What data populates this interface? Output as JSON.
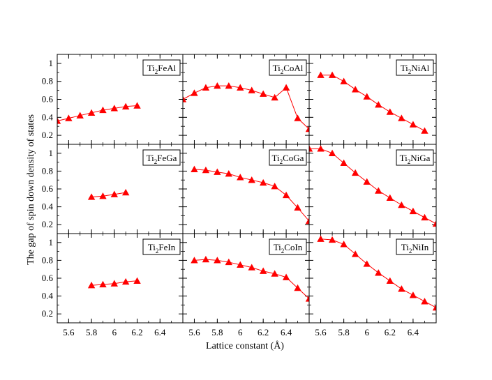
{
  "figure": {
    "xlabel": "Lattice constant (Å)",
    "ylabel": "The gap of spin down density of states"
  },
  "colors": {
    "series": "#ff0000",
    "frame": "#000000",
    "background": "#ffffff"
  },
  "chart_data": {
    "type": "line",
    "layout": "3x3 grid of panels sharing axes",
    "xlim": [
      5.5,
      6.6
    ],
    "ylim": [
      0.1,
      1.1
    ],
    "xticks": [
      5.6,
      5.8,
      6,
      6.2,
      6.4
    ],
    "yticks": [
      0.2,
      0.4,
      0.6,
      0.8,
      1
    ],
    "xticklabels": [
      "5.6",
      "5.8",
      "6",
      "6.2",
      "6.4"
    ],
    "yticklabels": [
      "0.2",
      "0.4",
      "0.6",
      "0.8",
      "1"
    ],
    "marker": "triangle",
    "panels": [
      {
        "label": {
          "pre": "Ti",
          "sub": "2",
          "post": "FeAl"
        },
        "row": 0,
        "col": 0,
        "x": [
          5.5,
          5.6,
          5.7,
          5.8,
          5.9,
          6.0,
          6.1,
          6.2
        ],
        "y": [
          0.36,
          0.39,
          0.42,
          0.45,
          0.48,
          0.5,
          0.52,
          0.53
        ]
      },
      {
        "label": {
          "pre": "Ti",
          "sub": "2",
          "post": "CoAl"
        },
        "row": 0,
        "col": 1,
        "x": [
          5.5,
          5.6,
          5.7,
          5.8,
          5.9,
          6.0,
          6.1,
          6.2,
          6.3,
          6.4,
          6.5,
          6.6
        ],
        "y": [
          0.6,
          0.67,
          0.73,
          0.75,
          0.75,
          0.73,
          0.7,
          0.66,
          0.62,
          0.73,
          0.39,
          0.27
        ]
      },
      {
        "label": {
          "pre": "Ti",
          "sub": "2",
          "post": "NiAl"
        },
        "row": 0,
        "col": 2,
        "x": [
          5.6,
          5.7,
          5.8,
          5.9,
          6.0,
          6.1,
          6.2,
          6.3,
          6.4,
          6.5
        ],
        "y": [
          0.87,
          0.87,
          0.8,
          0.71,
          0.63,
          0.54,
          0.46,
          0.39,
          0.32,
          0.25
        ]
      },
      {
        "label": {
          "pre": "Ti",
          "sub": "2",
          "post": "FeGa"
        },
        "row": 1,
        "col": 0,
        "x": [
          5.8,
          5.9,
          6.0,
          6.1
        ],
        "y": [
          0.51,
          0.52,
          0.54,
          0.56
        ]
      },
      {
        "label": {
          "pre": "Ti",
          "sub": "2",
          "post": "CoGa"
        },
        "row": 1,
        "col": 1,
        "x": [
          5.6,
          5.7,
          5.8,
          5.9,
          6.0,
          6.1,
          6.2,
          6.3,
          6.4,
          6.5,
          6.6
        ],
        "y": [
          0.82,
          0.81,
          0.79,
          0.77,
          0.73,
          0.7,
          0.67,
          0.63,
          0.53,
          0.39,
          0.24
        ]
      },
      {
        "label": {
          "pre": "Ti",
          "sub": "2",
          "post": "NiGa"
        },
        "row": 1,
        "col": 2,
        "x": [
          5.5,
          5.6,
          5.7,
          5.8,
          5.9,
          6.0,
          6.1,
          6.2,
          6.3,
          6.4,
          6.5,
          6.6
        ],
        "y": [
          1.05,
          1.05,
          1.0,
          0.89,
          0.78,
          0.68,
          0.58,
          0.5,
          0.42,
          0.35,
          0.28,
          0.21
        ]
      },
      {
        "label": {
          "pre": "Ti",
          "sub": "2",
          "post": "FeIn"
        },
        "row": 2,
        "col": 0,
        "x": [
          5.8,
          5.9,
          6.0,
          6.1,
          6.2
        ],
        "y": [
          0.52,
          0.53,
          0.54,
          0.56,
          0.57
        ]
      },
      {
        "label": {
          "pre": "Ti",
          "sub": "2",
          "post": "CoIn"
        },
        "row": 2,
        "col": 1,
        "x": [
          5.6,
          5.7,
          5.8,
          5.9,
          6.0,
          6.1,
          6.2,
          6.3,
          6.4,
          6.5,
          6.6
        ],
        "y": [
          0.8,
          0.81,
          0.8,
          0.78,
          0.75,
          0.72,
          0.68,
          0.65,
          0.61,
          0.49,
          0.37
        ]
      },
      {
        "label": {
          "pre": "Ti",
          "sub": "2",
          "post": "NiIn"
        },
        "row": 2,
        "col": 2,
        "x": [
          5.6,
          5.7,
          5.8,
          5.9,
          6.0,
          6.1,
          6.2,
          6.3,
          6.4,
          6.5,
          6.6
        ],
        "y": [
          1.04,
          1.03,
          0.98,
          0.87,
          0.76,
          0.66,
          0.57,
          0.48,
          0.41,
          0.34,
          0.27
        ]
      }
    ]
  }
}
